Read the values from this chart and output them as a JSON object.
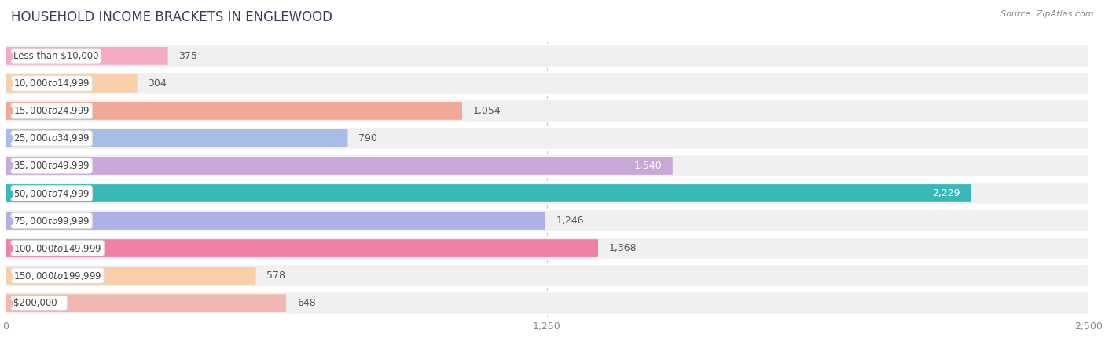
{
  "title": "HOUSEHOLD INCOME BRACKETS IN ENGLEWOOD",
  "source": "Source: ZipAtlas.com",
  "categories": [
    "Less than $10,000",
    "$10,000 to $14,999",
    "$15,000 to $24,999",
    "$25,000 to $34,999",
    "$35,000 to $49,999",
    "$50,000 to $74,999",
    "$75,000 to $99,999",
    "$100,000 to $149,999",
    "$150,000 to $199,999",
    "$200,000+"
  ],
  "values": [
    375,
    304,
    1054,
    790,
    1540,
    2229,
    1246,
    1368,
    578,
    648
  ],
  "bar_colors": [
    "#f5aac5",
    "#f9cfaa",
    "#f0a898",
    "#a8bce8",
    "#c8a8d8",
    "#3ab8b8",
    "#b0b0e8",
    "#f080a8",
    "#f9cfaa",
    "#f0b8b0"
  ],
  "label_colors": [
    "#666666",
    "#666666",
    "#666666",
    "#666666",
    "#ffffff",
    "#ffffff",
    "#666666",
    "#666666",
    "#666666",
    "#666666"
  ],
  "dot_colors": [
    "#f5aac5",
    "#f9cfaa",
    "#f0a898",
    "#a8bce8",
    "#c8a8d8",
    "#3ab8b8",
    "#b0b0e8",
    "#f080a8",
    "#f9cfaa",
    "#f0b8b0"
  ],
  "xlim": [
    0,
    2500
  ],
  "xticks": [
    0,
    1250,
    2500
  ],
  "background_color": "#ffffff",
  "row_bg_color": "#f0f0f0",
  "bar_bg_color": "#e8e8e8",
  "title_fontsize": 12,
  "title_color": "#3a3a5a",
  "bar_label_fontsize": 9,
  "tick_fontsize": 9,
  "category_fontsize": 8.5,
  "source_fontsize": 8
}
